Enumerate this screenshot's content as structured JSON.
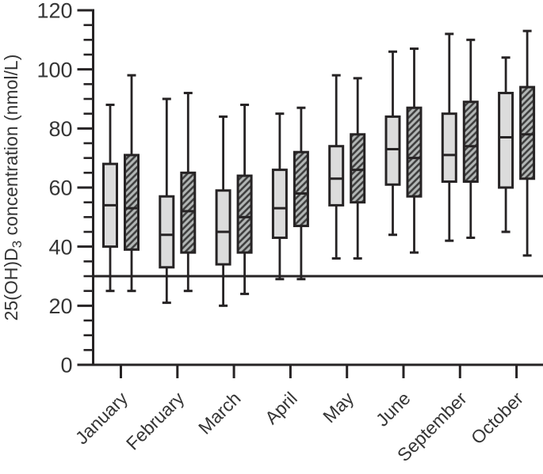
{
  "figure": {
    "y_axis_title_prefix": "25(OH)D",
    "y_axis_title_sub": "3",
    "y_axis_title_suffix": " concentration (nmol/L)"
  },
  "chart_data": {
    "type": "boxplot",
    "title": "",
    "xlabel": "",
    "ylabel": "25(OH)D3 concentration (nmol/L)",
    "ylim": [
      0,
      120
    ],
    "y_major_step": 20,
    "y_minor_step": 5,
    "y_tick_labels": [
      "0",
      "20",
      "40",
      "60",
      "80",
      "100",
      "120"
    ],
    "grid": "off",
    "legend_position": "none",
    "reference_line": {
      "value": 30
    },
    "categories": [
      "January",
      "February",
      "March",
      "April",
      "May",
      "June",
      "September",
      "October"
    ],
    "series": [
      {
        "name": "series-1",
        "style": "light-gray-solid",
        "boxes": [
          {
            "min": 25,
            "q1": 40,
            "median": 54,
            "q3": 68,
            "max": 88
          },
          {
            "min": 21,
            "q1": 33,
            "median": 44,
            "q3": 57,
            "max": 90
          },
          {
            "min": 20,
            "q1": 34,
            "median": 45,
            "q3": 59,
            "max": 84
          },
          {
            "min": 29,
            "q1": 43,
            "median": 53,
            "q3": 66,
            "max": 85
          },
          {
            "min": 36,
            "q1": 54,
            "median": 63,
            "q3": 74,
            "max": 98
          },
          {
            "min": 44,
            "q1": 61,
            "median": 73,
            "q3": 84,
            "max": 106
          },
          {
            "min": 42,
            "q1": 62,
            "median": 71,
            "q3": 85,
            "max": 112
          },
          {
            "min": 45,
            "q1": 60,
            "median": 77,
            "q3": 92,
            "max": 104
          }
        ]
      },
      {
        "name": "series-2",
        "style": "gray-diagonal-hatch",
        "boxes": [
          {
            "min": 25,
            "q1": 39,
            "median": 53,
            "q3": 71,
            "max": 98
          },
          {
            "min": 25,
            "q1": 38,
            "median": 52,
            "q3": 65,
            "max": 92
          },
          {
            "min": 24,
            "q1": 38,
            "median": 50,
            "q3": 64,
            "max": 88
          },
          {
            "min": 29,
            "q1": 47,
            "median": 58,
            "q3": 72,
            "max": 87
          },
          {
            "min": 36,
            "q1": 55,
            "median": 66,
            "q3": 78,
            "max": 97
          },
          {
            "min": 38,
            "q1": 57,
            "median": 70,
            "q3": 87,
            "max": 107
          },
          {
            "min": 43,
            "q1": 62,
            "median": 74,
            "q3": 89,
            "max": 110
          },
          {
            "min": 37,
            "q1": 63,
            "median": 78,
            "q3": 94,
            "max": 113
          }
        ]
      }
    ],
    "colors": {
      "line": "#262324",
      "text": "#353535",
      "light_fill": "#dcdcdc",
      "hatch_fill": "#b2b6b5",
      "hatch_stripe": "#404040",
      "background": "#ffffff"
    }
  }
}
